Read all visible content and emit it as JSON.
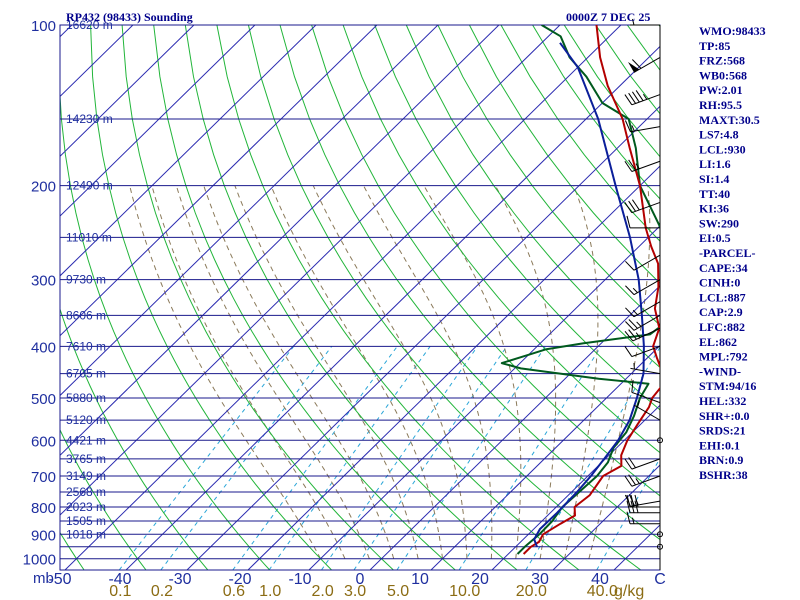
{
  "header": {
    "station": "RP432 (98433) Sounding",
    "time": "0000Z  7 DEC 25"
  },
  "indices": [
    "WMO:98433",
    "TP:85",
    "FRZ:568",
    "WB0:568",
    "PW:2.01",
    "RH:95.5",
    "MAXT:30.5",
    "LS7:4.8",
    "LCL:930",
    "LI:1.6",
    "SI:1.4",
    "TT:40",
    "KI:36",
    "SW:290",
    "EI:0.5",
    "-PARCEL-",
    "CAPE:34",
    "CINH:0",
    "LCL:887",
    "CAP:2.9",
    "LFC:882",
    "EL:862",
    "MPL:792",
    "-WIND-",
    "STM:94/16",
    "HEL:332",
    "SHR+:0.0",
    "SRDS:21",
    "EHI:0.1",
    "BRN:0.9",
    "BSHR:38"
  ],
  "colors": {
    "isobar": "#1a1a8c",
    "isotherm": "#2b2bb0",
    "dry_adiabat": "#22b53a",
    "mixing_ratio": "#2aa6d8",
    "moist_adiabat": "#8b7a5a",
    "temperature": "#b30000",
    "dewpoint": "#005a1e",
    "parcel": "#0b1f9a",
    "wind": "#000000"
  },
  "chart_data": {
    "type": "skew-t",
    "title": "RP432 (98433) Sounding",
    "xlabel": "°C",
    "ylabel": "mb",
    "mixing_ratio_unit": "g/kg",
    "pressure_range": [
      1000,
      100
    ],
    "temperature_range": [
      -50,
      50
    ],
    "pressure_ticks": [
      100,
      200,
      300,
      400,
      500,
      600,
      700,
      800,
      900,
      1000
    ],
    "temperature_ticks": [
      -50,
      -40,
      -30,
      -20,
      -10,
      0,
      10,
      20,
      30,
      40,
      50
    ],
    "temperature_tick_labels": [
      "-50",
      "-40",
      "-30",
      "-20",
      "-10",
      "0",
      "10",
      "20",
      "30",
      "40",
      "C"
    ],
    "mixing_ratio_labels": [
      {
        "value": 0.1,
        "label": "0.1"
      },
      {
        "value": 0.2,
        "label": "0.2"
      },
      {
        "value": 0.6,
        "label": "0.6"
      },
      {
        "value": 1.0,
        "label": "1.0"
      },
      {
        "value": 2.0,
        "label": "2.0"
      },
      {
        "value": 3.0,
        "label": "3.0"
      },
      {
        "value": 5.0,
        "label": "5.0"
      },
      {
        "value": 10.0,
        "label": "10.0"
      },
      {
        "value": 20.0,
        "label": "20.0"
      },
      {
        "value": 40.0,
        "label": "40.0"
      }
    ],
    "height_labels": [
      {
        "p": 100,
        "label": "16620 m"
      },
      {
        "p": 150,
        "label": "14230 m"
      },
      {
        "p": 200,
        "label": "12490 m"
      },
      {
        "p": 250,
        "label": "11010 m"
      },
      {
        "p": 300,
        "label": "9730 m"
      },
      {
        "p": 350,
        "label": "8606 m"
      },
      {
        "p": 400,
        "label": "7610 m"
      },
      {
        "p": 450,
        "label": "6705 m"
      },
      {
        "p": 500,
        "label": "5880 m"
      },
      {
        "p": 550,
        "label": "5120 m"
      },
      {
        "p": 600,
        "label": "4421 m"
      },
      {
        "p": 650,
        "label": "3765 m"
      },
      {
        "p": 700,
        "label": "3149 m"
      },
      {
        "p": 750,
        "label": "2568 m"
      },
      {
        "p": 800,
        "label": "2023 m"
      },
      {
        "p": 850,
        "label": "1505 m"
      },
      {
        "p": 900,
        "label": "1018 m"
      }
    ],
    "series": [
      {
        "name": "temperature",
        "points": [
          [
            980,
            22.5
          ],
          [
            950,
            22.5
          ],
          [
            930,
            23
          ],
          [
            900,
            22.4
          ],
          [
            860,
            23.5
          ],
          [
            830,
            24.5
          ],
          [
            800,
            23
          ],
          [
            760,
            23.5
          ],
          [
            700,
            22.5
          ],
          [
            670,
            23.8
          ],
          [
            640,
            22
          ],
          [
            600,
            20.5
          ],
          [
            560,
            19.5
          ],
          [
            520,
            18.5
          ],
          [
            500,
            17.5
          ],
          [
            470,
            17
          ],
          [
            440,
            14
          ],
          [
            420,
            11.5
          ],
          [
            400,
            9
          ],
          [
            370,
            7
          ],
          [
            340,
            3
          ],
          [
            310,
            0
          ],
          [
            280,
            -4
          ],
          [
            260,
            -8
          ],
          [
            240,
            -12
          ],
          [
            200,
            -20
          ],
          [
            170,
            -28
          ],
          [
            150,
            -34
          ],
          [
            130,
            -42
          ],
          [
            115,
            -48
          ],
          [
            100,
            -54
          ]
        ]
      },
      {
        "name": "dewpoint",
        "points": [
          [
            980,
            21.5
          ],
          [
            950,
            21.5
          ],
          [
            900,
            21.8
          ],
          [
            850,
            21.7
          ],
          [
            800,
            21
          ],
          [
            760,
            21.2
          ],
          [
            700,
            21.5
          ],
          [
            660,
            21
          ],
          [
            620,
            19.5
          ],
          [
            580,
            19
          ],
          [
            540,
            17.5
          ],
          [
            500,
            15.5
          ],
          [
            470,
            14.5
          ],
          [
            460,
            5.5
          ],
          [
            440,
            -9
          ],
          [
            430,
            -13
          ],
          [
            415,
            -10
          ],
          [
            405,
            -8
          ],
          [
            395,
            -3
          ],
          [
            380,
            6.5
          ],
          [
            350,
            7.5
          ],
          [
            320,
            5
          ],
          [
            290,
            1
          ],
          [
            260,
            -5
          ],
          [
            230,
            -12
          ],
          [
            200,
            -20
          ],
          [
            170,
            -27
          ],
          [
            150,
            -33
          ],
          [
            140,
            -40
          ],
          [
            125,
            -47
          ],
          [
            115,
            -53
          ],
          [
            105,
            -58
          ],
          [
            100,
            -63
          ]
        ]
      },
      {
        "name": "parcel",
        "points": [
          [
            950,
            23.5
          ],
          [
            920,
            21.8
          ],
          [
            880,
            21
          ],
          [
            820,
            21.1
          ],
          [
            750,
            20.9
          ],
          [
            700,
            20.5
          ],
          [
            650,
            19.8
          ],
          [
            600,
            19
          ],
          [
            550,
            17.5
          ],
          [
            500,
            15
          ],
          [
            450,
            12
          ],
          [
            400,
            7.5
          ],
          [
            350,
            2
          ],
          [
            300,
            -4.5
          ],
          [
            250,
            -13
          ],
          [
            200,
            -24
          ],
          [
            150,
            -38
          ],
          [
            120,
            -50
          ],
          [
            108,
            -57
          ]
        ]
      }
    ],
    "wind_barbs": [
      {
        "p": 100,
        "dir": 270,
        "spd": 5
      },
      {
        "p": 115,
        "dir": 240,
        "spd": 60
      },
      {
        "p": 135,
        "dir": 250,
        "spd": 45
      },
      {
        "p": 155,
        "dir": 260,
        "spd": 15
      },
      {
        "p": 180,
        "dir": 250,
        "spd": 25
      },
      {
        "p": 215,
        "dir": 250,
        "spd": 30
      },
      {
        "p": 240,
        "dir": 270,
        "spd": 10
      },
      {
        "p": 270,
        "dir": 240,
        "spd": 10
      },
      {
        "p": 300,
        "dir": 240,
        "spd": 15
      },
      {
        "p": 330,
        "dir": 240,
        "spd": 15
      },
      {
        "p": 350,
        "dir": 240,
        "spd": 25
      },
      {
        "p": 370,
        "dir": 245,
        "spd": 25
      },
      {
        "p": 400,
        "dir": 250,
        "spd": 10
      },
      {
        "p": 450,
        "dir": 280,
        "spd": 5
      },
      {
        "p": 510,
        "dir": 290,
        "spd": 10
      },
      {
        "p": 550,
        "dir": 300,
        "spd": 5
      },
      {
        "p": 600,
        "dir": 320,
        "spd": 0
      },
      {
        "p": 650,
        "dir": 250,
        "spd": 20
      },
      {
        "p": 700,
        "dir": 250,
        "spd": 25
      },
      {
        "p": 780,
        "dir": 260,
        "spd": 25
      },
      {
        "p": 800,
        "dir": 270,
        "spd": 30
      },
      {
        "p": 820,
        "dir": 270,
        "spd": 30
      },
      {
        "p": 860,
        "dir": 270,
        "spd": 15
      },
      {
        "p": 900,
        "dir": 300,
        "spd": 0
      },
      {
        "p": 950,
        "dir": 300,
        "spd": 0
      }
    ]
  }
}
